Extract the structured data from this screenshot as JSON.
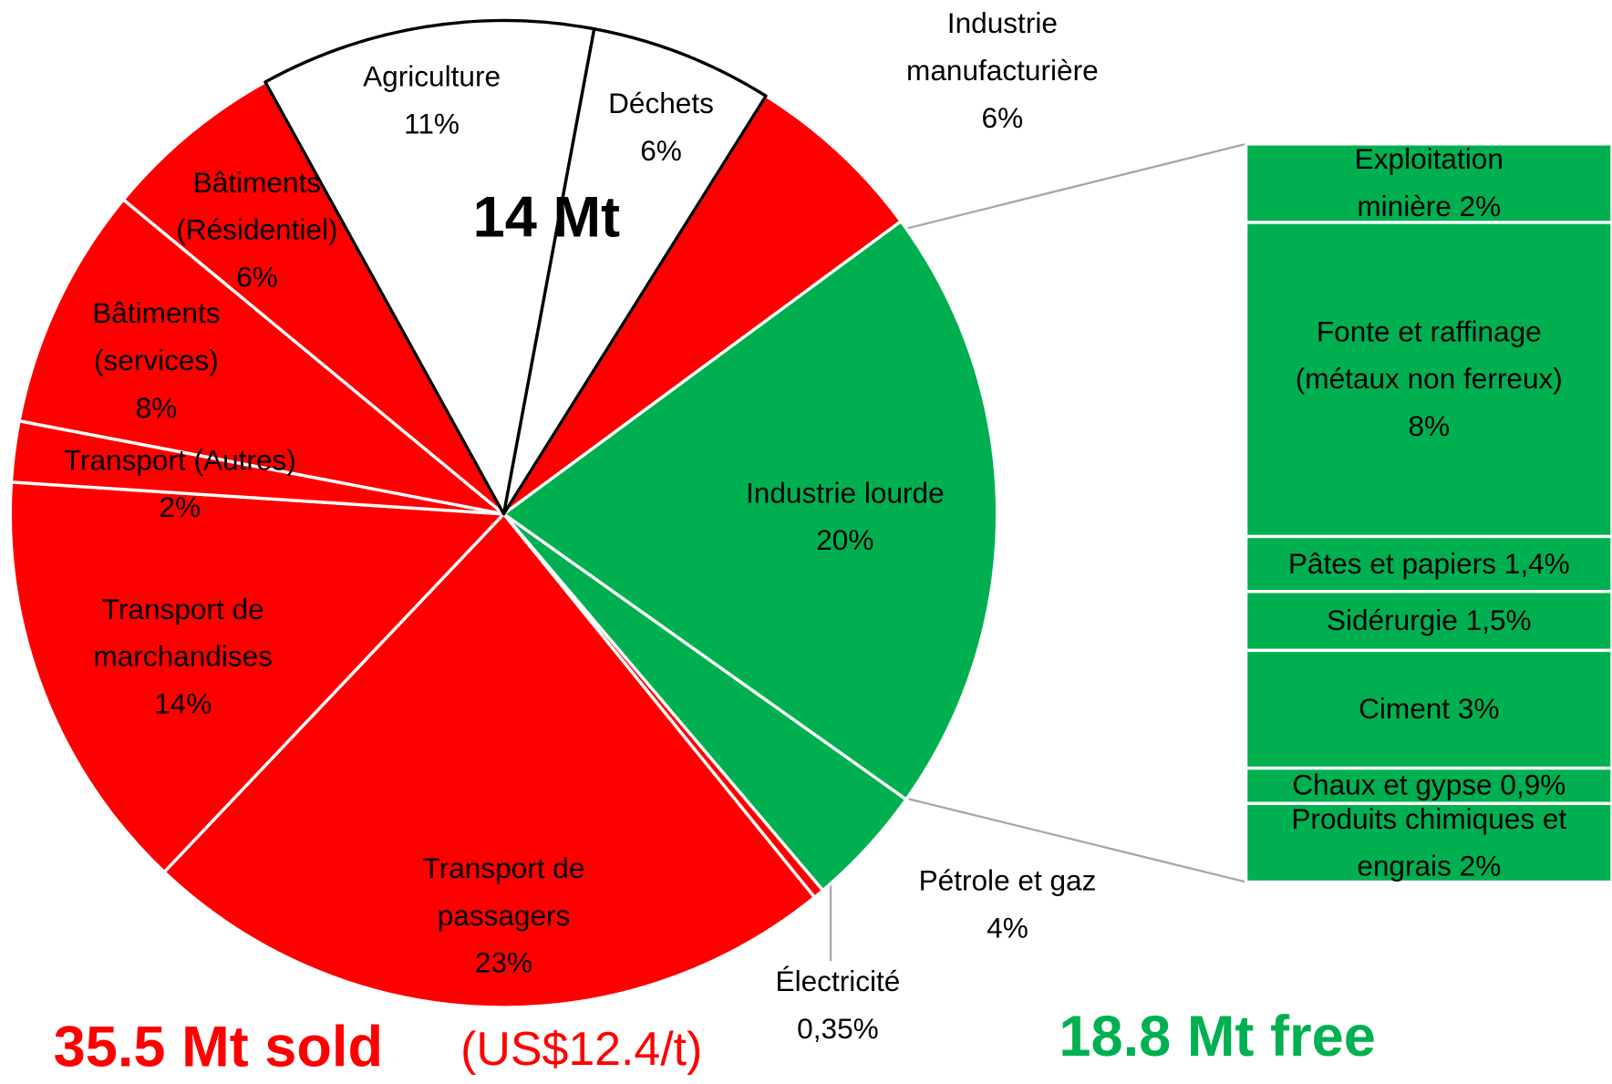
{
  "chart_data": {
    "type": "pie",
    "categories": [
      "Agriculture",
      "Déchets",
      "Industrie manufacturière",
      "Industrie lourde",
      "Pétrole et gaz",
      "Électricité",
      "Transport de passagers",
      "Transport de marchandises",
      "Transport (Autres)",
      "Bâtiments (services)",
      "Bâtiments (Résidentiel)"
    ],
    "values": [
      11,
      6,
      6,
      20,
      4,
      0.35,
      23,
      14,
      2,
      8,
      6
    ],
    "value_labels": [
      "11%",
      "6%",
      "6%",
      "20%",
      "4%",
      "0,35%",
      "23%",
      "14%",
      "2%",
      "8%",
      "6%"
    ],
    "colors": [
      "#ffffff",
      "#ffffff",
      "#ff0000",
      "#00b050",
      "#00b050",
      "#ff0000",
      "#ff0000",
      "#ff0000",
      "#ff0000",
      "#ff0000",
      "#ff0000"
    ],
    "edge_colors": [
      "#000000",
      "#000000",
      "#ffffff",
      "#ffffff",
      "#ffffff",
      "#ffffff",
      "#ffffff",
      "#ffffff",
      "#ffffff",
      "#ffffff",
      "#ffffff"
    ],
    "breakdown": {
      "categories": [
        "Exploitation minière",
        "Fonte et raffinage (métaux non ferreux)",
        "Pâtes et papiers",
        "Sidérurgie",
        "Ciment",
        "Chaux et gypse",
        "Produits chimiques et engrais"
      ],
      "values": [
        2,
        8,
        1.4,
        1.5,
        3,
        0.9,
        2
      ],
      "value_labels": [
        "2%",
        "8%",
        "1,4%",
        "1,5%",
        "3%",
        "0,9%",
        "2%"
      ],
      "color": "#00b050"
    },
    "annotations": [
      {
        "text": "14 Mt",
        "color": "#000000"
      },
      {
        "text": "35.5 Mt sold",
        "color": "#ff0000"
      },
      {
        "text": "(US$12.4/t)",
        "color": "#ff0000"
      },
      {
        "text": "18.8 Mt free",
        "color": "#00b050"
      }
    ]
  }
}
